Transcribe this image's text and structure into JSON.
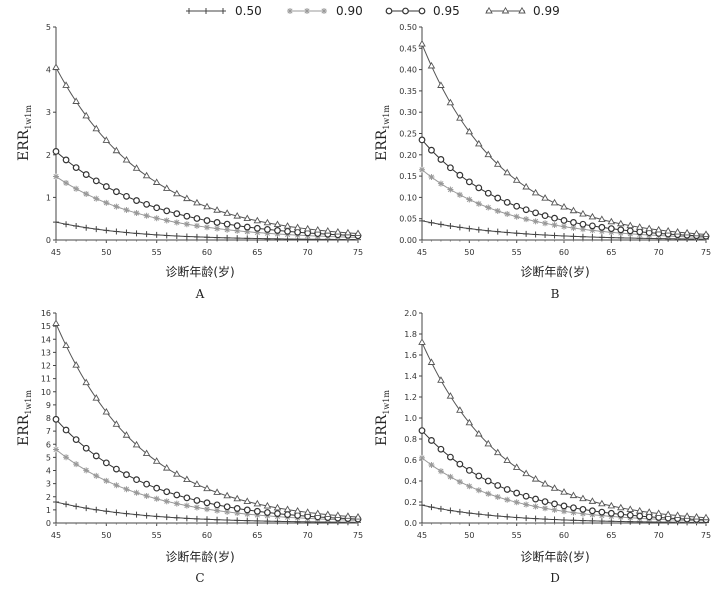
{
  "legend": {
    "items": [
      {
        "label": "0.50",
        "marker": "plus",
        "color": "#444444"
      },
      {
        "label": "0.90",
        "marker": "star",
        "color": "#999999"
      },
      {
        "label": "0.95",
        "marker": "circle",
        "color": "#333333"
      },
      {
        "label": "0.99",
        "marker": "triangle",
        "color": "#555555"
      }
    ]
  },
  "chart_data": [
    {
      "type": "line",
      "panel_label": "A",
      "ylabel_main": "ERR",
      "ylabel_sub": "1w1m",
      "xlabel": "诊断年龄(岁)",
      "x": [
        45,
        46,
        47,
        48,
        49,
        50,
        51,
        52,
        53,
        54,
        55,
        56,
        57,
        58,
        59,
        60,
        61,
        62,
        63,
        64,
        65,
        66,
        67,
        68,
        69,
        70,
        71,
        72,
        73,
        74,
        75
      ],
      "xlim": [
        45,
        75
      ],
      "xticks": [
        "45",
        "50",
        "55",
        "60",
        "65",
        "70",
        "75"
      ],
      "ylim": [
        0,
        5
      ],
      "yticks": [
        "0",
        "1",
        "2",
        "3",
        "4",
        "5"
      ],
      "series": [
        {
          "name": "0.50",
          "start": 0.42,
          "end": 0.01
        },
        {
          "name": "0.90",
          "start": 1.49,
          "end": 0.06
        },
        {
          "name": "0.95",
          "start": 2.08,
          "end": 0.1
        },
        {
          "name": "0.99",
          "start": 4.05,
          "end": 0.15
        }
      ]
    },
    {
      "type": "line",
      "panel_label": "B",
      "ylabel_main": "ERR",
      "ylabel_sub": "1w1m",
      "xlabel": "诊断年龄(岁)",
      "x": [
        45,
        46,
        47,
        48,
        49,
        50,
        51,
        52,
        53,
        54,
        55,
        56,
        57,
        58,
        59,
        60,
        61,
        62,
        63,
        64,
        65,
        66,
        67,
        68,
        69,
        70,
        71,
        72,
        73,
        74,
        75
      ],
      "xlim": [
        45,
        75
      ],
      "xticks": [
        "45",
        "50",
        "55",
        "60",
        "65",
        "70",
        "75"
      ],
      "ylim": [
        0,
        0.5
      ],
      "yticks": [
        "0.00",
        "0.05",
        "0.10",
        "0.15",
        "0.20",
        "0.25",
        "0.30",
        "0.35",
        "0.40",
        "0.45",
        "0.50"
      ],
      "series": [
        {
          "name": "0.50",
          "start": 0.045,
          "end": 0.002
        },
        {
          "name": "0.90",
          "start": 0.165,
          "end": 0.006
        },
        {
          "name": "0.95",
          "start": 0.235,
          "end": 0.009
        },
        {
          "name": "0.99",
          "start": 0.46,
          "end": 0.013
        }
      ]
    },
    {
      "type": "line",
      "panel_label": "C",
      "ylabel_main": "ERR",
      "ylabel_sub": "1w1m",
      "xlabel": "诊断年龄(岁)",
      "x": [
        45,
        46,
        47,
        48,
        49,
        50,
        51,
        52,
        53,
        54,
        55,
        56,
        57,
        58,
        59,
        60,
        61,
        62,
        63,
        64,
        65,
        66,
        67,
        68,
        69,
        70,
        71,
        72,
        73,
        74,
        75
      ],
      "xlim": [
        45,
        75
      ],
      "xticks": [
        "45",
        "50",
        "55",
        "60",
        "65",
        "70",
        "75"
      ],
      "ylim": [
        0,
        16
      ],
      "yticks": [
        "0",
        "1",
        "2",
        "3",
        "4",
        "5",
        "6",
        "7",
        "8",
        "9",
        "10",
        "11",
        "12",
        "13",
        "14",
        "15",
        "16"
      ],
      "series": [
        {
          "name": "0.50",
          "start": 1.6,
          "end": 0.05
        },
        {
          "name": "0.90",
          "start": 5.6,
          "end": 0.2
        },
        {
          "name": "0.95",
          "start": 7.9,
          "end": 0.3
        },
        {
          "name": "0.99",
          "start": 15.2,
          "end": 0.45
        }
      ]
    },
    {
      "type": "line",
      "panel_label": "D",
      "ylabel_main": "ERR",
      "ylabel_sub": "1w1m",
      "xlabel": "诊断年龄(岁)",
      "x": [
        45,
        46,
        47,
        48,
        49,
        50,
        51,
        52,
        53,
        54,
        55,
        56,
        57,
        58,
        59,
        60,
        61,
        62,
        63,
        64,
        65,
        66,
        67,
        68,
        69,
        70,
        71,
        72,
        73,
        74,
        75
      ],
      "xlim": [
        45,
        75
      ],
      "xticks": [
        "45",
        "50",
        "55",
        "60",
        "65",
        "70",
        "75"
      ],
      "ylim": [
        0,
        2.0
      ],
      "yticks": [
        "0.0",
        "0.2",
        "0.4",
        "0.6",
        "0.8",
        "1.0",
        "1.2",
        "1.4",
        "1.6",
        "1.8",
        "2.0"
      ],
      "series": [
        {
          "name": "0.50",
          "start": 0.17,
          "end": 0.005
        },
        {
          "name": "0.90",
          "start": 0.62,
          "end": 0.02
        },
        {
          "name": "0.95",
          "start": 0.88,
          "end": 0.03
        },
        {
          "name": "0.99",
          "start": 1.72,
          "end": 0.05
        }
      ]
    }
  ]
}
